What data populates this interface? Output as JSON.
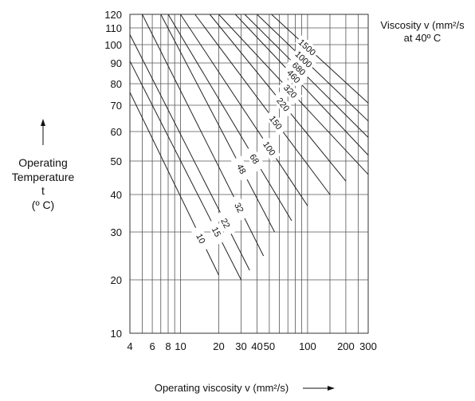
{
  "chart_data": {
    "type": "line",
    "title": "",
    "xlabel": "Operating viscosity v (mm²/s)",
    "ylabel": [
      "Operating",
      "Temperature",
      "t",
      "(º C)"
    ],
    "legend_title": [
      "Viscosity v (mm²/s",
      "at 40º C"
    ],
    "x_scale": "log",
    "y_scale": "viscosity-temperature (ASTM)",
    "xlim": [
      4,
      300
    ],
    "ylim": [
      10,
      120
    ],
    "x_ticks": [
      4,
      6,
      8,
      10,
      20,
      30,
      40,
      50,
      100,
      200,
      300
    ],
    "x_tick_labels": [
      "4",
      "6",
      "8",
      "10",
      "20",
      "30",
      "40",
      "50",
      "100",
      "200",
      "300"
    ],
    "y_ticks": [
      10,
      20,
      30,
      40,
      50,
      60,
      70,
      80,
      90,
      100,
      110,
      120
    ],
    "y_tick_labels": [
      "10",
      "20",
      "30",
      "40",
      "50",
      "60",
      "70",
      "80",
      "90",
      "100",
      "110",
      "120"
    ],
    "grid": true,
    "series": [
      {
        "name": "10",
        "points": [
          [
            4,
            76
          ],
          [
            20,
            21
          ]
        ]
      },
      {
        "name": "15",
        "points": [
          [
            4,
            91
          ],
          [
            30,
            20
          ]
        ]
      },
      {
        "name": "22",
        "points": [
          [
            4,
            106
          ],
          [
            35,
            22
          ]
        ]
      },
      {
        "name": "32",
        "points": [
          [
            5,
            120
          ],
          [
            45,
            25
          ]
        ]
      },
      {
        "name": "48",
        "points": [
          [
            7,
            120
          ],
          [
            55,
            30
          ]
        ]
      },
      {
        "name": "68",
        "points": [
          [
            8,
            120
          ],
          [
            75,
            33
          ]
        ]
      },
      {
        "name": "100",
        "points": [
          [
            10,
            120
          ],
          [
            100,
            37
          ]
        ]
      },
      {
        "name": "150",
        "points": [
          [
            13,
            120
          ],
          [
            150,
            40
          ]
        ]
      },
      {
        "name": "220",
        "points": [
          [
            17,
            120
          ],
          [
            200,
            44
          ]
        ]
      },
      {
        "name": "320",
        "points": [
          [
            20,
            120
          ],
          [
            300,
            46
          ]
        ]
      },
      {
        "name": "460",
        "points": [
          [
            27,
            120
          ],
          [
            300,
            52
          ]
        ]
      },
      {
        "name": "680",
        "points": [
          [
            32,
            120
          ],
          [
            300,
            58
          ]
        ]
      },
      {
        "name": "1000",
        "points": [
          [
            40,
            120
          ],
          [
            300,
            64
          ]
        ]
      },
      {
        "name": "1500",
        "points": [
          [
            52,
            120
          ],
          [
            300,
            71
          ]
        ]
      }
    ]
  }
}
